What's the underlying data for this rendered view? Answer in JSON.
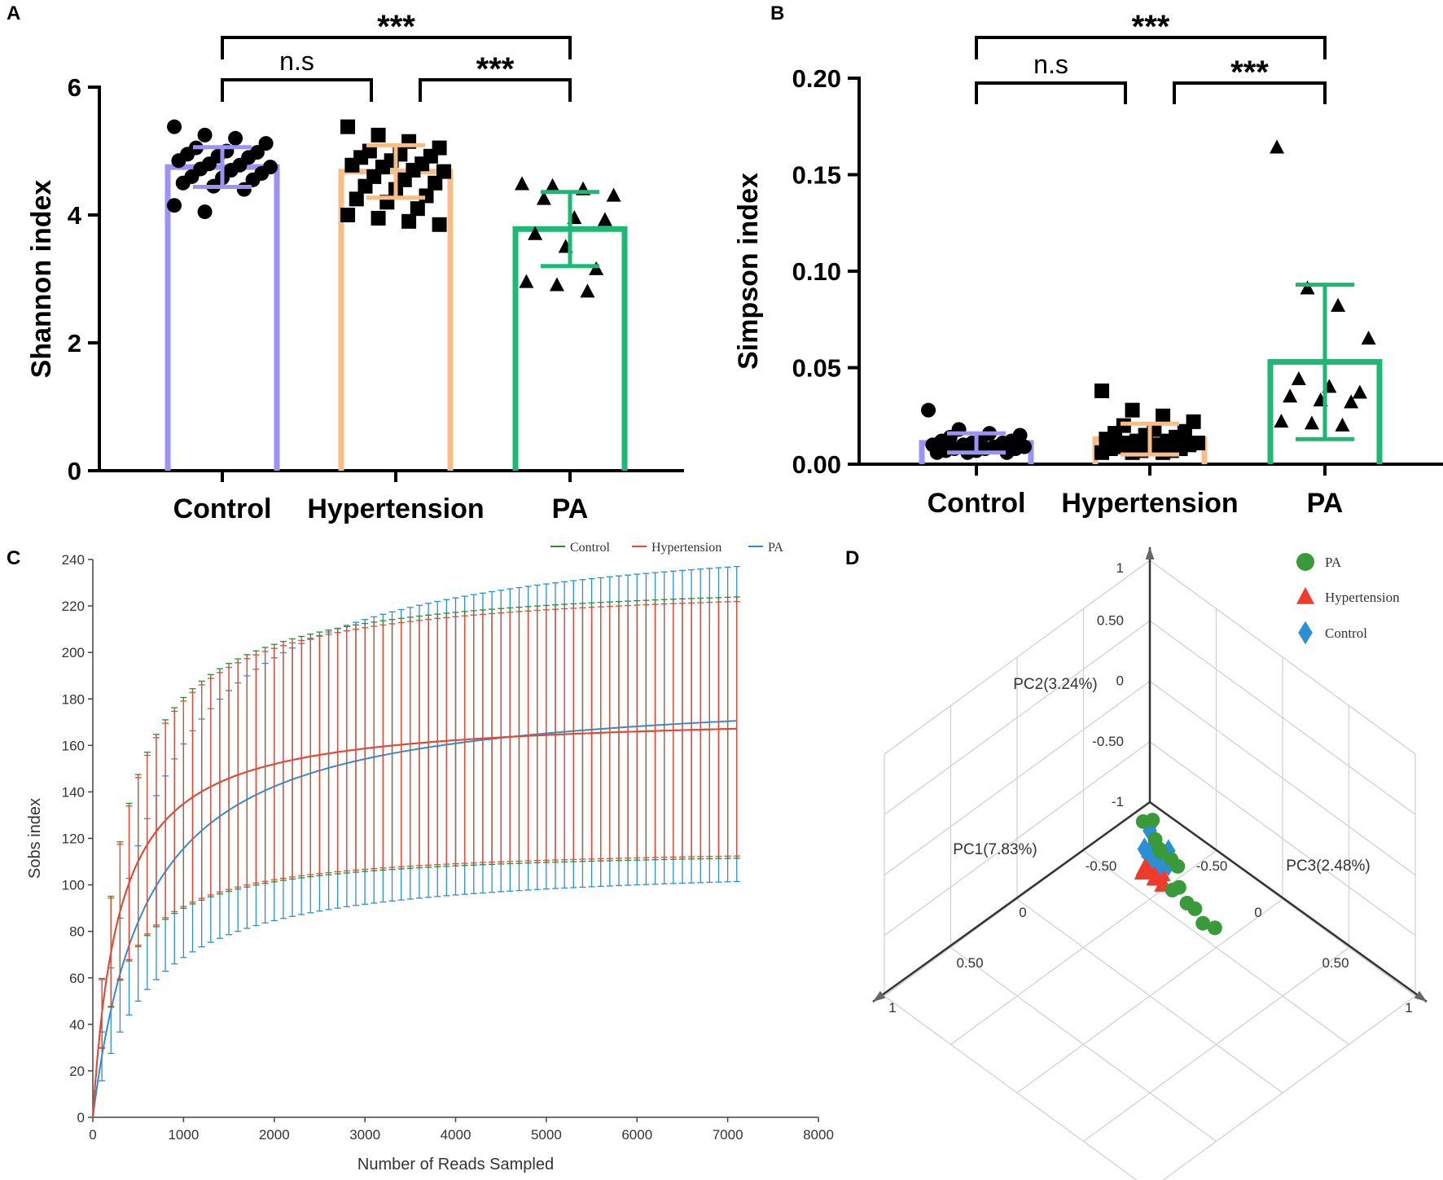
{
  "panels": {
    "a": "A",
    "b": "B",
    "c": "C",
    "d": "D"
  },
  "chart_data": [
    {
      "id": "shannon",
      "type": "bar",
      "ylabel": "Shannon index",
      "ylim": [
        0,
        6
      ],
      "yticks": [
        0,
        2,
        4,
        6
      ],
      "categories": [
        "Control",
        "Hypertension",
        "PA"
      ],
      "colors": [
        "#9b93f3",
        "#f8bd85",
        "#1db874"
      ],
      "means": [
        4.75,
        4.68,
        3.78
      ],
      "sd": [
        0.31,
        0.41,
        0.58
      ],
      "markers": [
        "circle",
        "square",
        "triangle"
      ],
      "points": [
        [
          5.38,
          5.25,
          5.2,
          5.12,
          5.05,
          5.0,
          4.98,
          4.95,
          4.92,
          4.9,
          4.85,
          4.8,
          4.78,
          4.75,
          4.72,
          4.7,
          4.65,
          4.6,
          4.58,
          4.55,
          4.5,
          4.45,
          4.4,
          4.15,
          4.05
        ],
        [
          5.38,
          5.25,
          5.15,
          5.05,
          5.0,
          4.95,
          4.92,
          4.9,
          4.85,
          4.8,
          4.78,
          4.75,
          4.7,
          4.68,
          4.6,
          4.55,
          4.5,
          4.45,
          4.4,
          4.3,
          4.25,
          4.2,
          4.1,
          4.0,
          3.95,
          3.9,
          3.85
        ],
        [
          4.48,
          4.45,
          4.4,
          4.3,
          4.25,
          3.95,
          3.92,
          3.7,
          3.5,
          3.15,
          2.95,
          2.9,
          2.8
        ]
      ],
      "significance": [
        {
          "from": 0,
          "to": 2,
          "label": "***"
        },
        {
          "from": 0,
          "to": 1,
          "label": "n.s"
        },
        {
          "from": 1,
          "to": 2,
          "label": "***"
        }
      ]
    },
    {
      "id": "simpson",
      "type": "bar",
      "ylabel": "Simpson index",
      "ylim": [
        0,
        0.2
      ],
      "yticks": [
        "0.00",
        "0.05",
        "0.10",
        "0.15",
        "0.20"
      ],
      "categories": [
        "Control",
        "Hypertension",
        "PA"
      ],
      "colors": [
        "#9b93f3",
        "#f8bd85",
        "#1db874"
      ],
      "means": [
        0.011,
        0.013,
        0.053
      ],
      "sd": [
        0.005,
        0.008,
        0.04
      ],
      "markers": [
        "circle",
        "square",
        "triangle"
      ],
      "points": [
        [
          0.028,
          0.018,
          0.016,
          0.015,
          0.014,
          0.013,
          0.012,
          0.012,
          0.011,
          0.011,
          0.01,
          0.01,
          0.009,
          0.009,
          0.008,
          0.008,
          0.008,
          0.007,
          0.007,
          0.006,
          0.006,
          0.006
        ],
        [
          0.038,
          0.028,
          0.025,
          0.022,
          0.02,
          0.018,
          0.017,
          0.016,
          0.015,
          0.014,
          0.013,
          0.012,
          0.012,
          0.011,
          0.011,
          0.01,
          0.01,
          0.009,
          0.009,
          0.008,
          0.008,
          0.007,
          0.007,
          0.006,
          0.006,
          0.006
        ],
        [
          0.164,
          0.091,
          0.082,
          0.065,
          0.044,
          0.04,
          0.037,
          0.035,
          0.033,
          0.032,
          0.022,
          0.021,
          0.02
        ]
      ],
      "significance": [
        {
          "from": 0,
          "to": 2,
          "label": "***"
        },
        {
          "from": 0,
          "to": 1,
          "label": "n.s"
        },
        {
          "from": 1,
          "to": 2,
          "label": "***"
        }
      ]
    },
    {
      "id": "rarefaction",
      "type": "line",
      "xlabel": "Number of Reads Sampled",
      "ylabel": "Sobs index",
      "xlim": [
        0,
        8000
      ],
      "ylim": [
        0,
        240
      ],
      "xticks": [
        0,
        1000,
        2000,
        3000,
        4000,
        5000,
        6000,
        7000,
        8000
      ],
      "yticks": [
        0,
        20,
        40,
        60,
        80,
        100,
        120,
        140,
        160,
        180,
        200,
        220,
        240
      ],
      "series": [
        {
          "name": "Control",
          "color": "#2e8b2e",
          "mean_plateau": 174,
          "k": 290,
          "upper_plateau": 233,
          "lower_plateau": 116
        },
        {
          "name": "Hypertension",
          "color": "#e8473a",
          "mean_plateau": 174,
          "k": 290,
          "upper_plateau": 231,
          "lower_plateau": 117
        },
        {
          "name": "PA",
          "color": "#2a8fd6",
          "mean_plateau": 185,
          "k": 600,
          "upper_plateau": 257,
          "lower_plateau": 110
        }
      ],
      "x_end": 7100
    },
    {
      "id": "pcoa3d",
      "type": "scatter",
      "axis_labels": {
        "pc1": "PC1(7.83%)",
        "pc2": "PC2(3.24%)",
        "pc3": "PC3(2.48%)"
      },
      "tick_labels": {
        "vertical": [
          "1",
          "0.50",
          "0",
          "-0.50",
          "-1"
        ],
        "left": [
          "-0.50",
          "0",
          "0.50",
          "1"
        ],
        "right": [
          "-0.50",
          "0",
          "0.50",
          "1"
        ]
      },
      "legend": [
        {
          "name": "PA",
          "color": "#3a9a3a",
          "marker": "circle"
        },
        {
          "name": "Hypertension",
          "color": "#ef3b2c",
          "marker": "triangle"
        },
        {
          "name": "Control",
          "color": "#2a8fd6",
          "marker": "diamond"
        }
      ],
      "groups": {
        "PA": [
          [
            0.05,
            0.0,
            -0.72
          ],
          [
            0.02,
            0.04,
            -0.7
          ],
          [
            0.06,
            0.1,
            -0.78
          ],
          [
            0.05,
            0.12,
            -0.85
          ],
          [
            0.08,
            0.16,
            -0.82
          ],
          [
            0.04,
            0.2,
            -0.88
          ],
          [
            0.02,
            0.23,
            -0.93
          ],
          [
            0.15,
            0.32,
            -0.95
          ],
          [
            0.08,
            0.3,
            -1.0
          ],
          [
            0.1,
            0.38,
            -1.05
          ],
          [
            0.08,
            0.42,
            -1.08
          ],
          [
            0.1,
            0.5,
            -1.12
          ],
          [
            0.06,
            0.55,
            -1.15
          ]
        ],
        "Hypertension": [
          [
            0.0,
            0.0,
            -1.0
          ],
          [
            -0.02,
            0.02,
            -1.02
          ],
          [
            0.0,
            0.01,
            -1.08
          ],
          [
            0.02,
            0.0,
            -1.1
          ],
          [
            0.01,
            0.03,
            -1.12
          ],
          [
            -0.01,
            0.02,
            -1.14
          ],
          [
            0.0,
            0.0,
            -1.16
          ],
          [
            0.03,
            0.02,
            -1.12
          ],
          [
            0.02,
            -0.02,
            -1.15
          ],
          [
            0.04,
            0.04,
            -1.1
          ],
          [
            0.05,
            0.0,
            -1.14
          ],
          [
            0.01,
            0.05,
            -1.18
          ],
          [
            -0.03,
            0.06,
            -1.17
          ],
          [
            0.02,
            0.08,
            -1.15
          ],
          [
            0.0,
            0.1,
            -1.2
          ]
        ],
        "Control": [
          [
            -0.05,
            -0.05,
            -0.88
          ],
          [
            -0.04,
            -0.04,
            -0.9
          ],
          [
            -0.06,
            -0.02,
            -1.0
          ],
          [
            -0.1,
            0.04,
            -1.05
          ],
          [
            -0.04,
            0.0,
            -1.06
          ],
          [
            0.0,
            0.02,
            -1.04
          ],
          [
            -0.02,
            0.06,
            -1.08
          ],
          [
            -0.06,
            0.08,
            -1.1
          ],
          [
            -0.08,
            0.02,
            -1.1
          ],
          [
            0.0,
            -0.04,
            -1.02
          ]
        ]
      }
    }
  ]
}
